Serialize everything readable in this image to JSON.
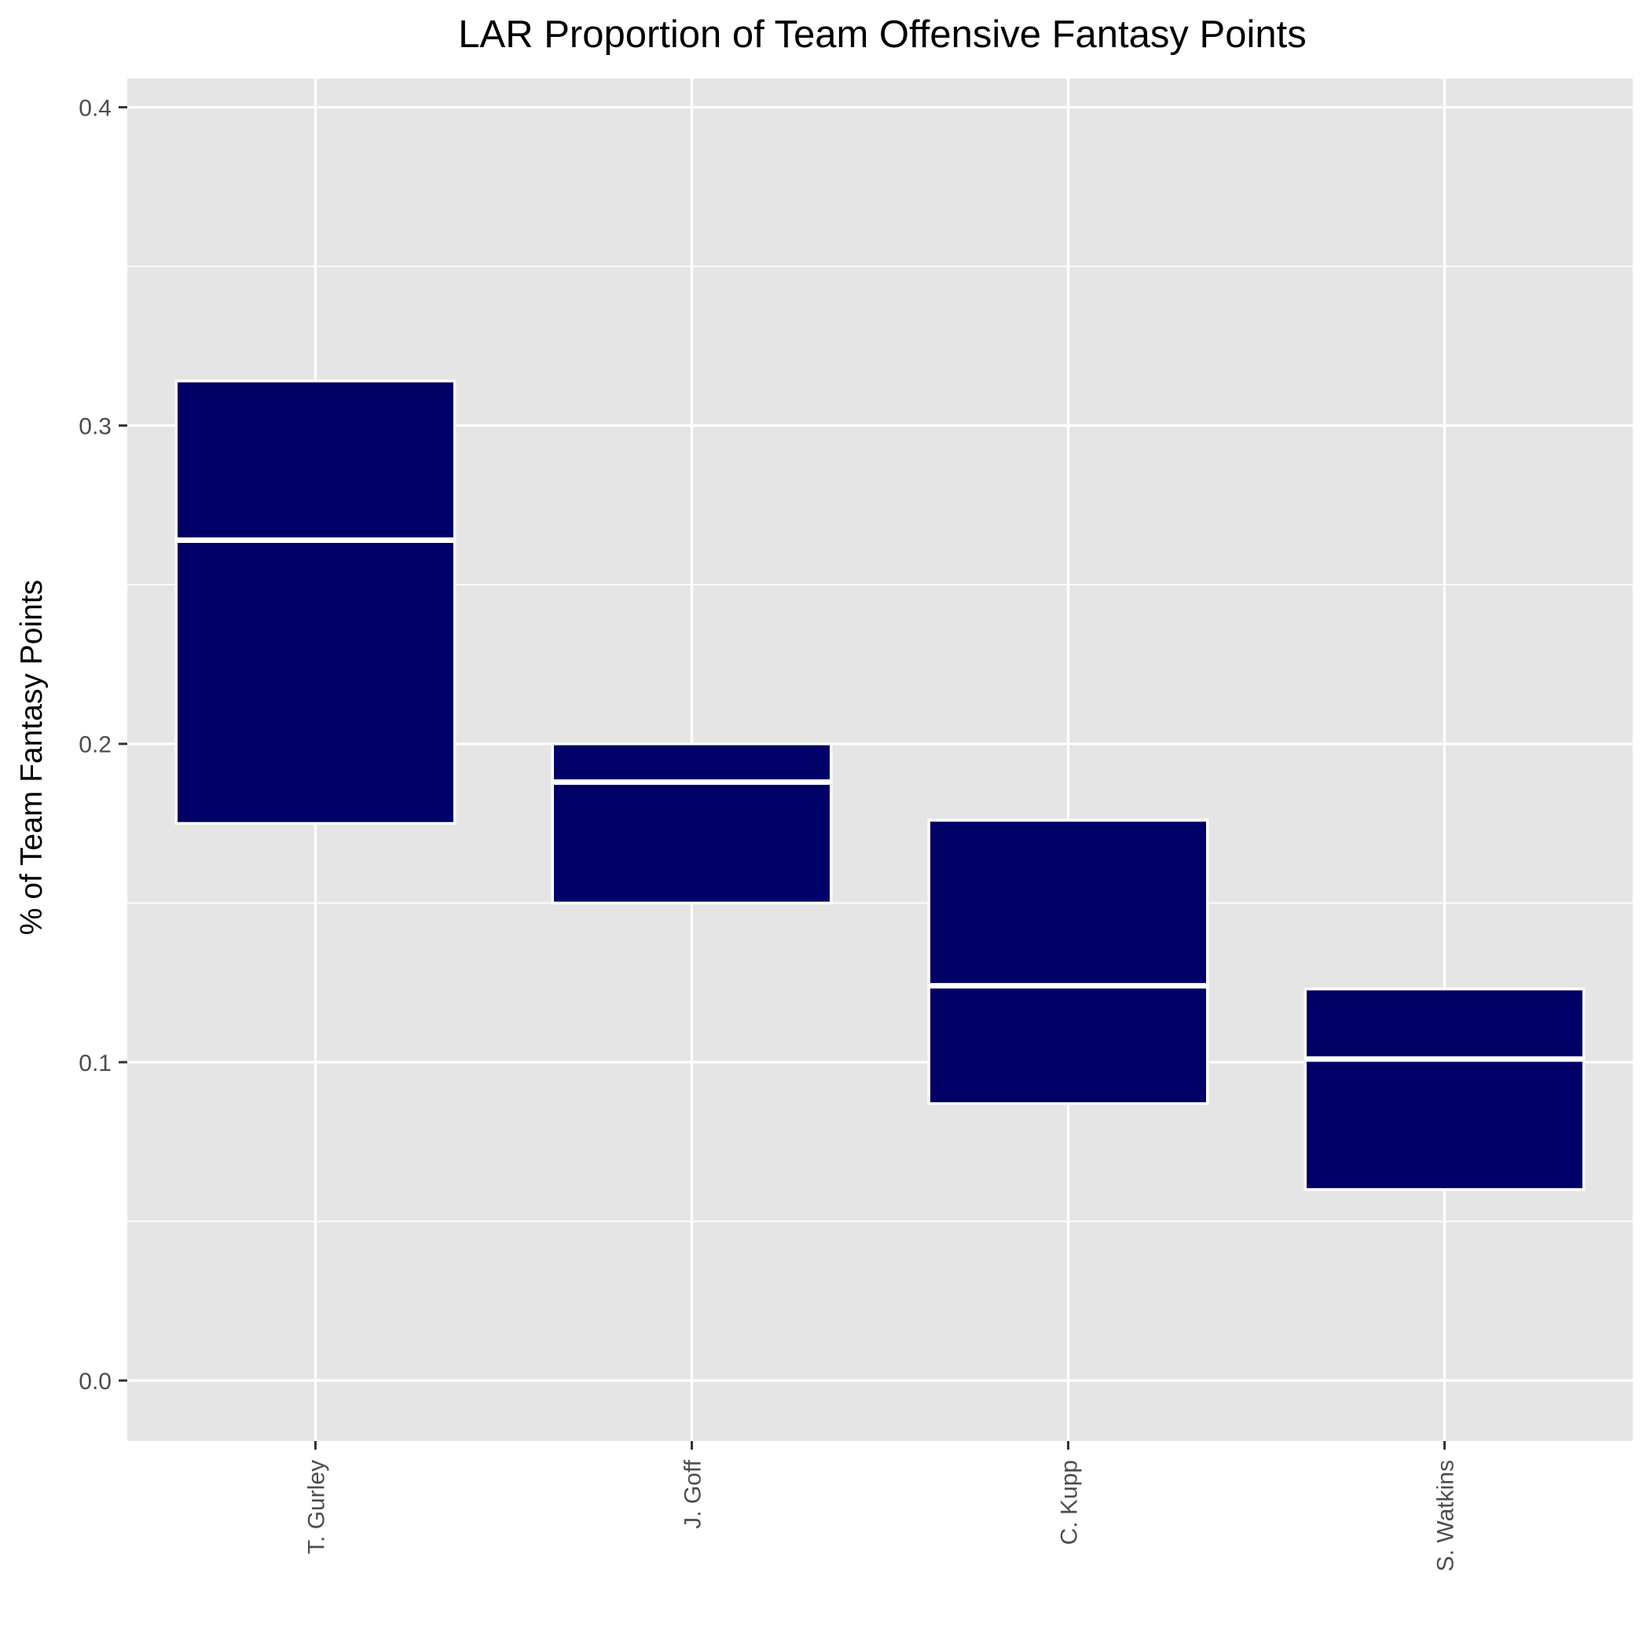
{
  "chart_data": {
    "type": "crossbar",
    "title": "LAR Proportion of Team Offensive Fantasy Points",
    "xlabel": "",
    "ylabel": "% of Team Fantasy Points",
    "ylim": [
      -0.019,
      0.409
    ],
    "yticks": [
      "0.0",
      "0.1",
      "0.2",
      "0.3",
      "0.4"
    ],
    "ytick_values": [
      0.0,
      0.1,
      0.2,
      0.3,
      0.4
    ],
    "grid": true,
    "categories": [
      "T. Gurley",
      "J. Goff",
      "C. Kupp",
      "S. Watkins"
    ],
    "series": [
      {
        "name": "proportion",
        "lower": [
          0.175,
          0.15,
          0.087,
          0.06
        ],
        "middle": [
          0.264,
          0.188,
          0.124,
          0.101
        ],
        "upper": [
          0.314,
          0.2,
          0.176,
          0.123
        ]
      }
    ],
    "colors": {
      "fill": "#000066",
      "outline": "#ffffff",
      "panel": "#e5e5e5",
      "grid": "#ffffff",
      "tick": "#333333"
    }
  }
}
